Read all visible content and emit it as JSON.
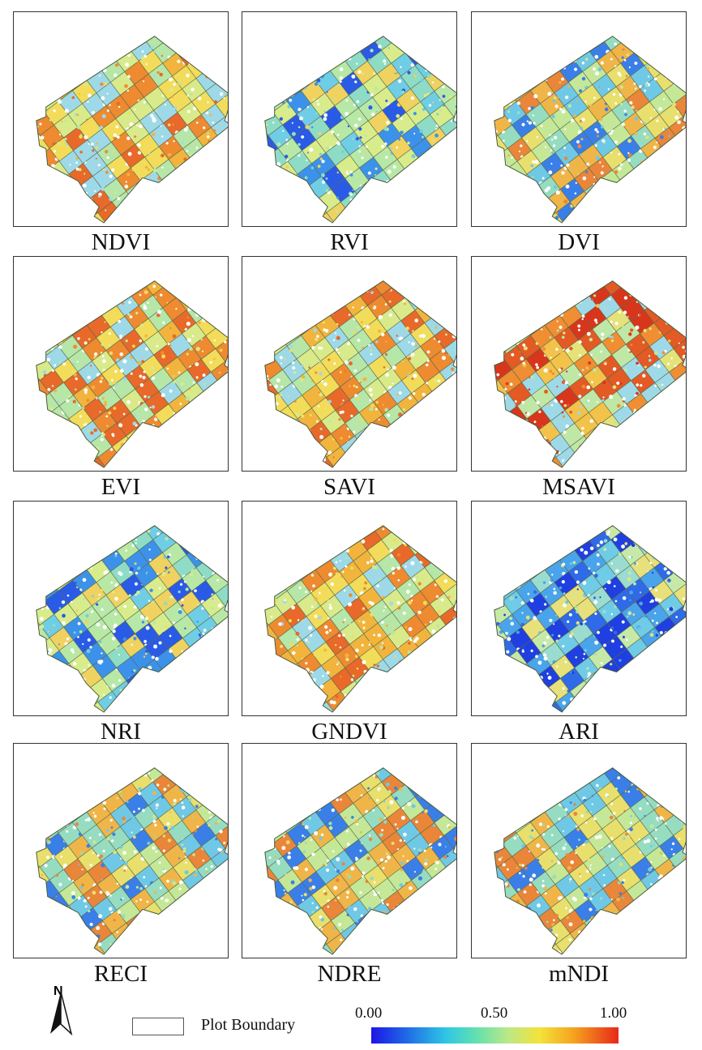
{
  "panels": [
    {
      "label": "NDVI",
      "palette": "warm"
    },
    {
      "label": "RVI",
      "palette": "cool"
    },
    {
      "label": "DVI",
      "palette": "mixed"
    },
    {
      "label": "EVI",
      "palette": "warm"
    },
    {
      "label": "SAVI",
      "palette": "warm"
    },
    {
      "label": "MSAVI",
      "palette": "hot"
    },
    {
      "label": "NRI",
      "palette": "cool"
    },
    {
      "label": "GNDVI",
      "palette": "warm"
    },
    {
      "label": "ARI",
      "palette": "blue"
    },
    {
      "label": "RECI",
      "palette": "mixed"
    },
    {
      "label": "NDRE",
      "palette": "mixed"
    },
    {
      "label": "mNDI",
      "palette": "mixed"
    }
  ],
  "north_arrow": {
    "letter": "N",
    "icon": "north-arrow-icon"
  },
  "legend": {
    "plot_boundary_label": "Plot Boundary",
    "colorbar": {
      "min_label": "0.00",
      "mid_label": "0.50",
      "max_label": "1.00",
      "colors": [
        "#1e14e6",
        "#2ec6e6",
        "#b9e88a",
        "#f3e33a",
        "#e8281a"
      ]
    }
  }
}
